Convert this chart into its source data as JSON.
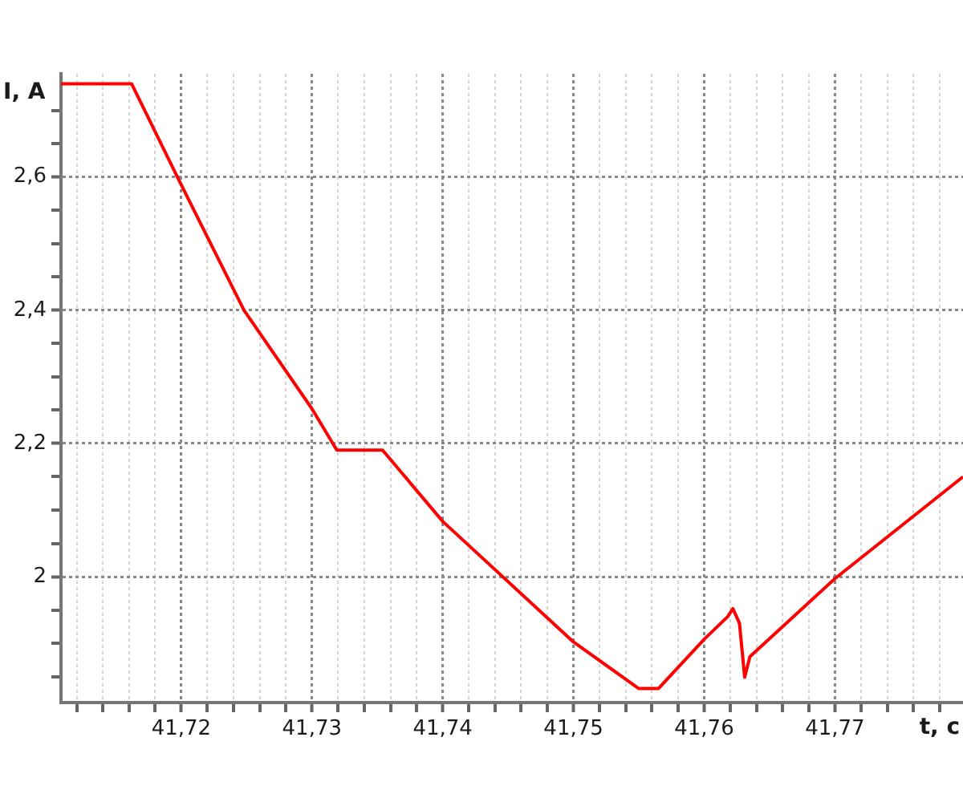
{
  "chart_data": {
    "type": "line",
    "xlabel": "t, c",
    "ylabel": "I, A",
    "xlim": [
      41.7108,
      41.7798
    ],
    "ylim": [
      1.811,
      2.755
    ],
    "xticks": [
      {
        "value": 41.712,
        "label": null
      },
      {
        "value": 41.714,
        "label": null
      },
      {
        "value": 41.716,
        "label": null
      },
      {
        "value": 41.718,
        "label": null
      },
      {
        "value": 41.72,
        "label": "41,72"
      },
      {
        "value": 41.722,
        "label": null
      },
      {
        "value": 41.724,
        "label": null
      },
      {
        "value": 41.726,
        "label": null
      },
      {
        "value": 41.728,
        "label": null
      },
      {
        "value": 41.73,
        "label": "41,73"
      },
      {
        "value": 41.732,
        "label": null
      },
      {
        "value": 41.734,
        "label": null
      },
      {
        "value": 41.736,
        "label": null
      },
      {
        "value": 41.738,
        "label": null
      },
      {
        "value": 41.74,
        "label": "41,74"
      },
      {
        "value": 41.742,
        "label": null
      },
      {
        "value": 41.744,
        "label": null
      },
      {
        "value": 41.746,
        "label": null
      },
      {
        "value": 41.748,
        "label": null
      },
      {
        "value": 41.75,
        "label": "41,75"
      },
      {
        "value": 41.752,
        "label": null
      },
      {
        "value": 41.754,
        "label": null
      },
      {
        "value": 41.756,
        "label": null
      },
      {
        "value": 41.758,
        "label": null
      },
      {
        "value": 41.76,
        "label": "41,76"
      },
      {
        "value": 41.762,
        "label": null
      },
      {
        "value": 41.764,
        "label": null
      },
      {
        "value": 41.766,
        "label": null
      },
      {
        "value": 41.768,
        "label": null
      },
      {
        "value": 41.77,
        "label": "41,77"
      },
      {
        "value": 41.772,
        "label": null
      },
      {
        "value": 41.774,
        "label": null
      },
      {
        "value": 41.776,
        "label": null
      },
      {
        "value": 41.778,
        "label": null
      }
    ],
    "yticks": [
      {
        "value": 1.85,
        "label": null
      },
      {
        "value": 1.9,
        "label": null
      },
      {
        "value": 1.95,
        "label": null
      },
      2,
      {
        "value": 2.05,
        "label": null
      },
      {
        "value": 2.1,
        "label": null
      },
      {
        "value": 2.15,
        "label": null
      },
      {
        "value": 2.2,
        "label": "2,2"
      },
      {
        "value": 2.25,
        "label": null
      },
      {
        "value": 2.3,
        "label": null
      },
      {
        "value": 2.35,
        "label": null
      },
      {
        "value": 2.4,
        "label": "2,4"
      },
      {
        "value": 2.45,
        "label": null
      },
      {
        "value": 2.5,
        "label": null
      },
      {
        "value": 2.55,
        "label": null
      },
      {
        "value": 2.6,
        "label": "2,6"
      },
      {
        "value": 2.65,
        "label": null
      },
      {
        "value": 2.7,
        "label": null
      }
    ],
    "grid": true,
    "legend": false,
    "marker": "none",
    "line_style": "solid",
    "series": [
      {
        "color": "#ff0000",
        "x": [
          41.7108,
          41.7162,
          41.7197,
          41.7248,
          41.73,
          41.7319,
          41.7354,
          41.74,
          41.75,
          41.755,
          41.7565,
          41.76,
          41.7618,
          41.7622,
          41.7627,
          41.7631,
          41.7635,
          41.77,
          41.7798
        ],
        "values": [
          2.74,
          2.74,
          2.6,
          2.4,
          2.252,
          2.19,
          2.19,
          2.083,
          1.902,
          1.832,
          1.832,
          1.906,
          1.94,
          1.952,
          1.93,
          1.849,
          1.88,
          1.997,
          2.15
        ]
      }
    ]
  }
}
